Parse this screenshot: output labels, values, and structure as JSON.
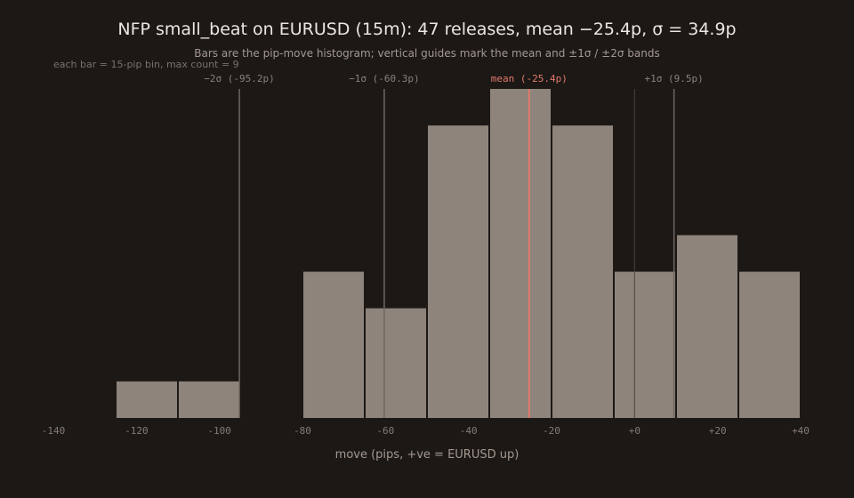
{
  "chart_data": {
    "type": "bar",
    "title": "NFP small_beat on EURUSD (15m): 47 releases, mean −25.4p, σ = 34.9p",
    "subtitle": "Bars are the pip-move histogram; vertical guides mark the mean and ±1σ / ±2σ bands",
    "note": "each bar = 15-pip bin, max count = 9",
    "xlabel": "move (pips, +ve = EURUSD up)",
    "ylabel": "",
    "xlim": [
      -140,
      40
    ],
    "ylim": [
      0,
      9
    ],
    "bin_width": 15,
    "bins": [
      {
        "start": -125,
        "count": 1
      },
      {
        "start": -110,
        "count": 1
      },
      {
        "start": -80,
        "count": 4
      },
      {
        "start": -65,
        "count": 3
      },
      {
        "start": -50,
        "count": 8
      },
      {
        "start": -35,
        "count": 9
      },
      {
        "start": -20,
        "count": 8
      },
      {
        "start": -5,
        "count": 4
      },
      {
        "start": 10,
        "count": 5
      },
      {
        "start": 25,
        "count": 4
      }
    ],
    "x_ticks": [
      {
        "value": -140,
        "label": "-140"
      },
      {
        "value": -120,
        "label": "-120"
      },
      {
        "value": -100,
        "label": "-100"
      },
      {
        "value": -80,
        "label": "-80"
      },
      {
        "value": -60,
        "label": "-60"
      },
      {
        "value": -40,
        "label": "-40"
      },
      {
        "value": -20,
        "label": "-20"
      },
      {
        "value": 0,
        "label": "+0"
      },
      {
        "value": 20,
        "label": "+20"
      },
      {
        "value": 40,
        "label": "+40"
      }
    ],
    "guides": [
      {
        "value": -95.2,
        "label": "−2σ (-95.2p)",
        "kind": "sigma"
      },
      {
        "value": -60.3,
        "label": "−1σ (-60.3p)",
        "kind": "sigma"
      },
      {
        "value": -25.4,
        "label": "mean (-25.4p)",
        "kind": "mean"
      },
      {
        "value": 9.5,
        "label": "+1σ (9.5p)",
        "kind": "sigma"
      }
    ],
    "zero_line": 0,
    "colors": {
      "background": "#1c1816",
      "bar": "#8e847b",
      "mean_line": "#e07a6a",
      "guide_line": "#6e6660",
      "zero_line": "#4a433e"
    }
  }
}
